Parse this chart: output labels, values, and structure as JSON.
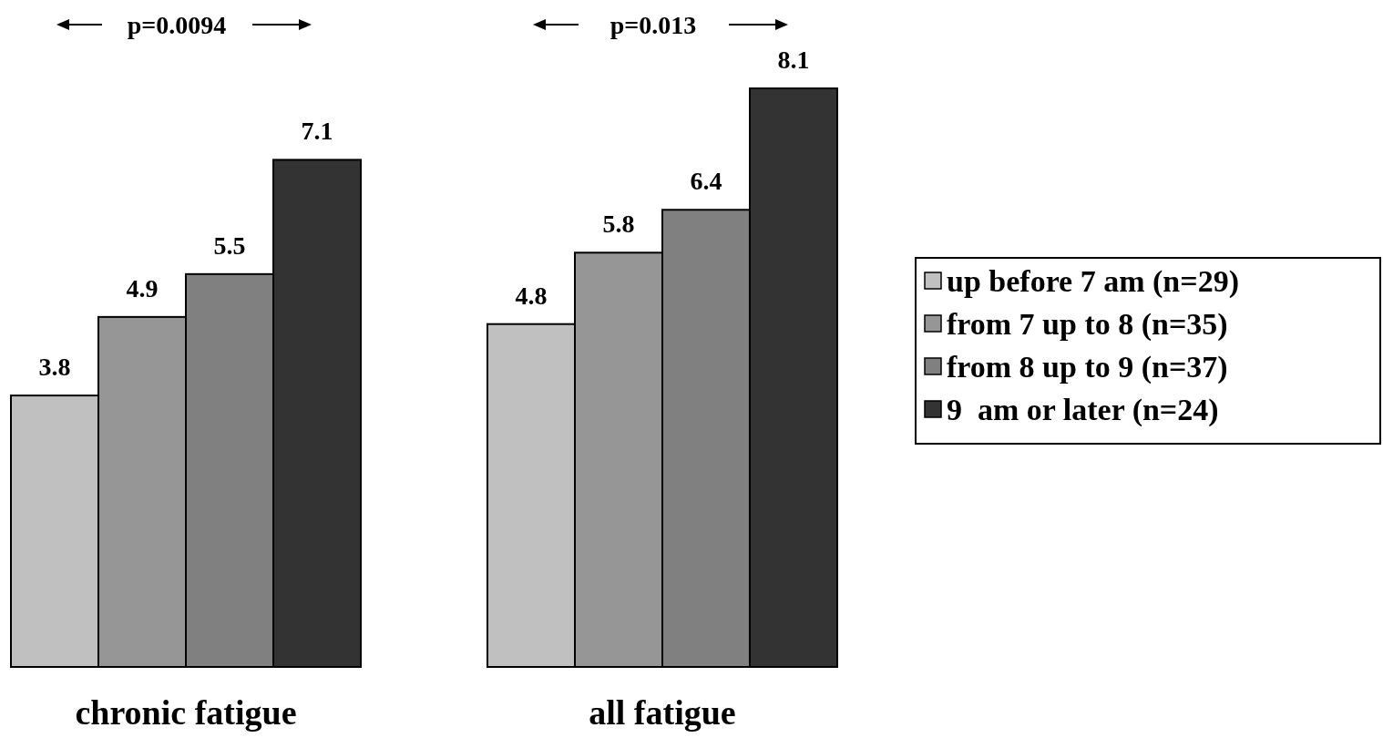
{
  "chart_data": {
    "type": "bar",
    "categories": [
      "chronic fatigue",
      "all fatigue"
    ],
    "series": [
      {
        "name": "up before 7 am (n=29)",
        "color": "#c0c0c0",
        "values": [
          3.8,
          4.8
        ]
      },
      {
        "name": "from 7 up to 8 (n=35)",
        "color": "#969696",
        "values": [
          4.9,
          5.8
        ]
      },
      {
        "name": "from 8 up to 9 (n=37)",
        "color": "#808080",
        "values": [
          5.5,
          6.4
        ]
      },
      {
        "name": "9  am or later (n=24)",
        "color": "#333333",
        "values": [
          7.1,
          8.1
        ]
      }
    ],
    "data_labels": true,
    "legend": "right",
    "annotations": [
      "p=0.0094",
      "p=0.013"
    ]
  }
}
